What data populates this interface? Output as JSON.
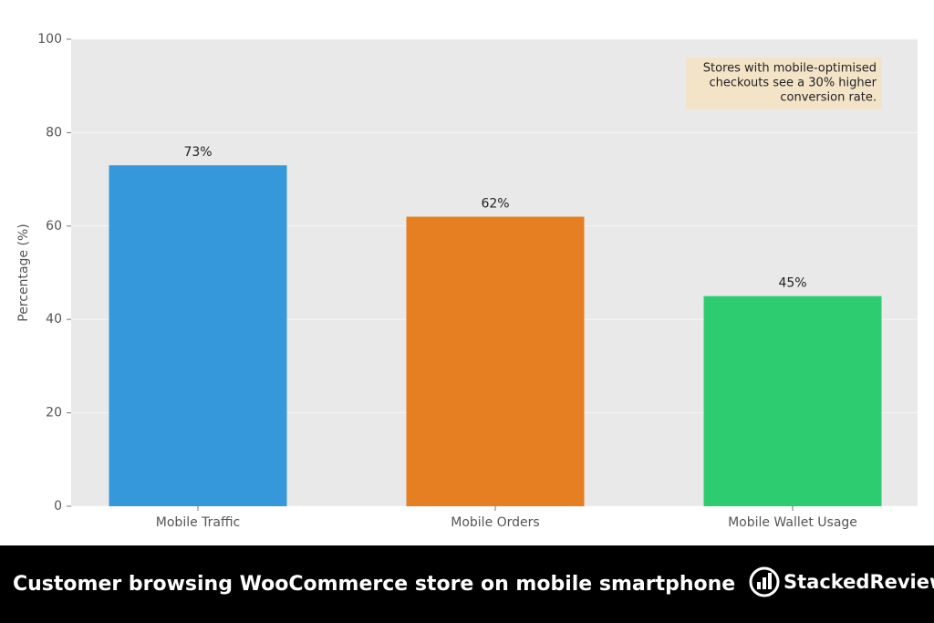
{
  "chart_data": {
    "type": "bar",
    "ylabel": "Percentage (%)",
    "categories": [
      "Mobile Traffic",
      "Mobile Orders",
      "Mobile Wallet Usage"
    ],
    "values": [
      73,
      62,
      45
    ],
    "value_labels": [
      "73%",
      "62%",
      "45%"
    ],
    "colors": [
      "#3498db",
      "#e67e22",
      "#2ecc71"
    ],
    "ylim": [
      0,
      100
    ],
    "yticks": [
      0,
      20,
      40,
      60,
      80,
      100
    ],
    "grid": true,
    "annotation": [
      "Stores with mobile-optimised",
      "checkouts see a 30% higher",
      "conversion rate."
    ]
  },
  "footer": {
    "caption": "Customer browsing WooCommerce store on mobile smartphone",
    "brand": "StackedReview"
  }
}
